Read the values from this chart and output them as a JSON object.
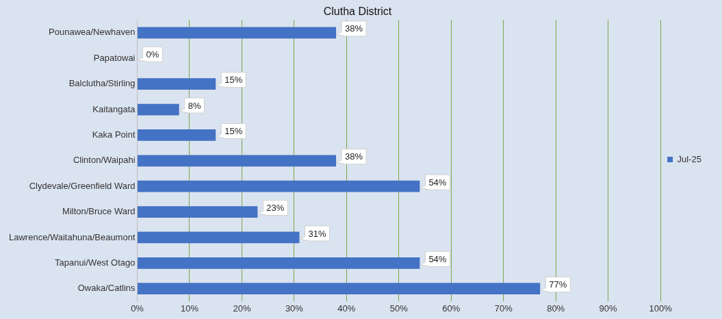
{
  "chart_data": {
    "type": "bar",
    "orientation": "horizontal",
    "title": "Clutha District",
    "categories": [
      "Pounawea/Newhaven",
      "Papatowai",
      "Balclutha/Stirling",
      "Kaitangata",
      "Kaka Point",
      "Clinton/Waipahi",
      "Clydevale/Greenfield Ward",
      "Milton/Bruce Ward",
      "Lawrence/Waitahuna/Beaumont",
      "Tapanui/West Otago",
      "Owaka/Catlins"
    ],
    "series": [
      {
        "name": "Jul-25",
        "color": "#4472c4",
        "values": [
          38,
          0,
          15,
          8,
          15,
          38,
          54,
          23,
          31,
          54,
          77
        ],
        "value_labels": [
          "38%",
          "0%",
          "15%",
          "8%",
          "15%",
          "38%",
          "54%",
          "23%",
          "31%",
          "54%",
          "77%"
        ]
      }
    ],
    "xlim": [
      0,
      100
    ],
    "xticks": [
      {
        "value": 0,
        "label": "0%"
      },
      {
        "value": 10,
        "label": "10%"
      },
      {
        "value": 20,
        "label": "20%"
      },
      {
        "value": 30,
        "label": "30%"
      },
      {
        "value": 40,
        "label": "40%"
      },
      {
        "value": 50,
        "label": "50%"
      },
      {
        "value": 60,
        "label": "60%"
      },
      {
        "value": 70,
        "label": "70%"
      },
      {
        "value": 80,
        "label": "80%"
      },
      {
        "value": 90,
        "label": "90%"
      },
      {
        "value": 100,
        "label": "100%"
      }
    ],
    "grid": "x",
    "legend": "right"
  }
}
